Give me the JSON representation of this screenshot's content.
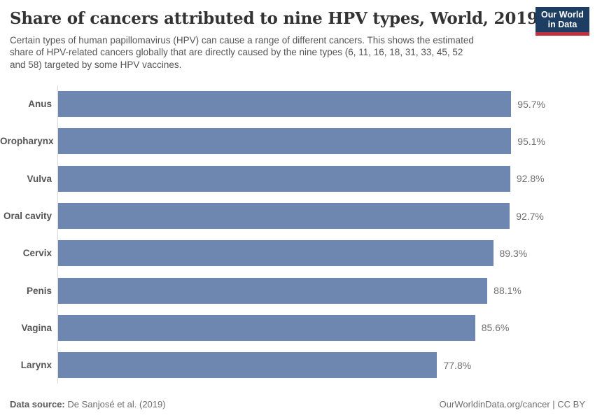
{
  "header": {
    "title": "Share of cancers attributed to nine HPV types, World, 2019",
    "subtitle_lines": [
      "Certain types of human papillomavirus (HPV) can cause a range of different cancers. This shows the estimated",
      "share of HPV-related cancers globally that are directly caused by the nine types (6, 11, 16, 18, 31, 33, 45, 52",
      "and 58) targeted by some HPV vaccines."
    ],
    "logo": {
      "line1": "Our World",
      "line2": "in Data"
    }
  },
  "chart_data": {
    "type": "bar",
    "orientation": "horizontal",
    "title": "Share of cancers attributed to nine HPV types, World, 2019",
    "categories": [
      "Anus",
      "Oropharynx",
      "Vulva",
      "Oral cavity",
      "Cervix",
      "Penis",
      "Vagina",
      "Larynx"
    ],
    "values": [
      95.7,
      95.1,
      92.8,
      92.7,
      89.3,
      88.1,
      85.6,
      77.8
    ],
    "value_labels": [
      "95.7%",
      "95.1%",
      "92.8%",
      "92.7%",
      "89.3%",
      "88.1%",
      "85.6%",
      "77.8%"
    ],
    "xlabel": "",
    "ylabel": "",
    "xlim": [
      0,
      100
    ],
    "grid": false,
    "legend": false,
    "bar_color": "#6d87b1"
  },
  "footer": {
    "datasource_label": "Data source:",
    "datasource_value": "De Sanjosé et al. (2019)",
    "attribution": "OurWorldinData.org/cancer | CC BY"
  },
  "colors": {
    "bar": "#6d87b1",
    "axis": "#dadada",
    "logo_navy": "#1d3d63",
    "logo_red": "#c5303e",
    "title_text": "#333333",
    "subtitle_text": "#555555"
  }
}
